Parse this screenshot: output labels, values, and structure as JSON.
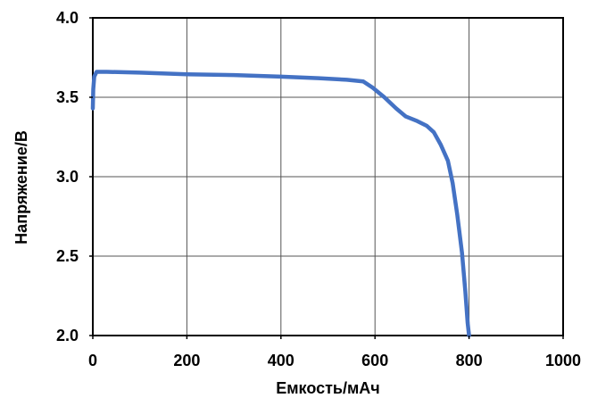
{
  "chart_data": {
    "type": "line",
    "title": "",
    "xlabel": "Емкость/мАч",
    "ylabel": "Напряжение/В",
    "xlim": [
      0,
      1000
    ],
    "ylim": [
      2.0,
      4.0
    ],
    "x_ticks": [
      0,
      200,
      400,
      600,
      800,
      1000
    ],
    "y_ticks": [
      2.0,
      2.5,
      3.0,
      3.5,
      4.0
    ],
    "x_tick_labels": [
      "0",
      "200",
      "400",
      "600",
      "800",
      "1000"
    ],
    "y_tick_labels": [
      "2.0",
      "2.5",
      "3.0",
      "3.5",
      "4.0"
    ],
    "grid": true,
    "legend": "none",
    "series": [
      {
        "color": "#4472C4",
        "points": [
          [
            0,
            3.43
          ],
          [
            1,
            3.55
          ],
          [
            3,
            3.63
          ],
          [
            8,
            3.66
          ],
          [
            30,
            3.66
          ],
          [
            100,
            3.655
          ],
          [
            200,
            3.645
          ],
          [
            300,
            3.64
          ],
          [
            400,
            3.63
          ],
          [
            480,
            3.62
          ],
          [
            540,
            3.61
          ],
          [
            575,
            3.6
          ],
          [
            595,
            3.56
          ],
          [
            620,
            3.5
          ],
          [
            645,
            3.43
          ],
          [
            665,
            3.38
          ],
          [
            690,
            3.35
          ],
          [
            710,
            3.32
          ],
          [
            725,
            3.28
          ],
          [
            740,
            3.2
          ],
          [
            755,
            3.1
          ],
          [
            765,
            2.96
          ],
          [
            775,
            2.76
          ],
          [
            785,
            2.52
          ],
          [
            792,
            2.28
          ],
          [
            797,
            2.08
          ],
          [
            800,
            2.0
          ]
        ]
      }
    ]
  }
}
